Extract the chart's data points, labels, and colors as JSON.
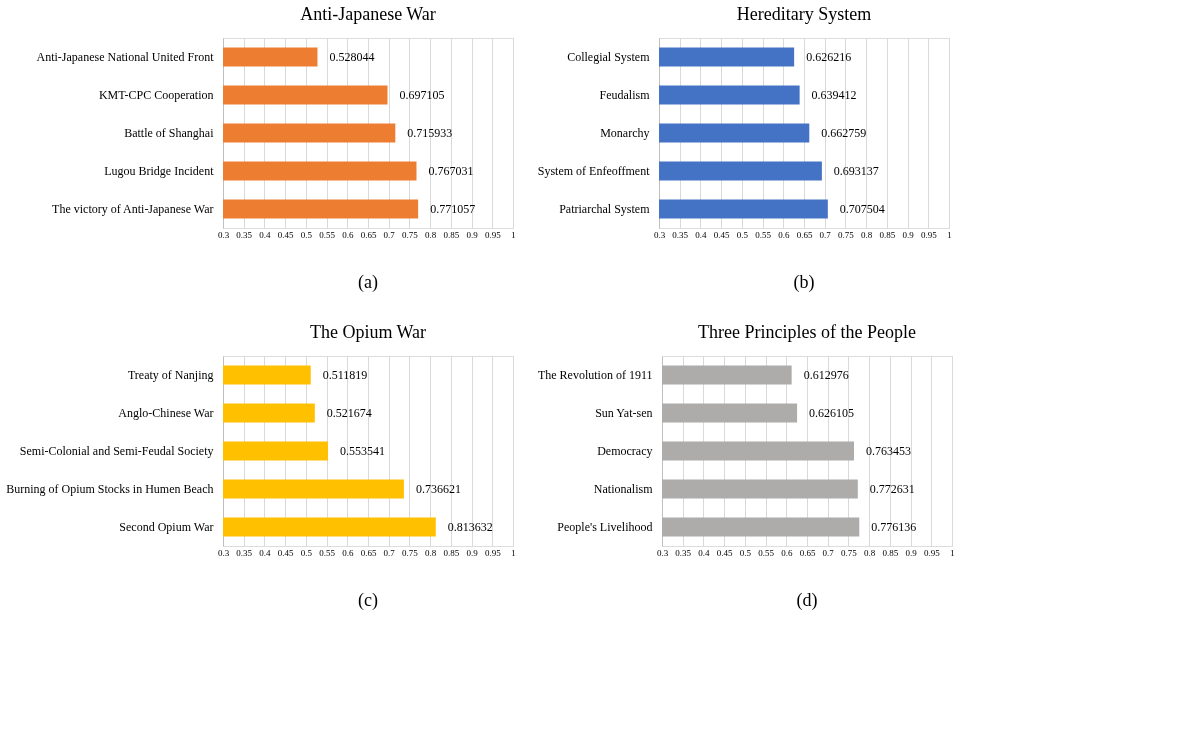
{
  "chart_data": [
    {
      "type": "bar",
      "orientation": "horizontal",
      "title": "Anti-Japanese War",
      "categories": [
        "Anti-Japanese National United Front",
        "KMT-CPC Cooperation",
        "Battle of Shanghai",
        "Lugou Bridge Incident",
        "The victory of Anti-Japanese War"
      ],
      "values": [
        0.528044,
        0.697105,
        0.715933,
        0.767031,
        0.771057
      ],
      "color": "#ed7d31",
      "xlim": [
        0.3,
        1
      ],
      "xticks": [
        0.3,
        0.35,
        0.4,
        0.45,
        0.5,
        0.55,
        0.6,
        0.65,
        0.7,
        0.75,
        0.8,
        0.85,
        0.9,
        0.95,
        1
      ],
      "grid": "x",
      "data_labels": true,
      "annotations": [
        "(a)"
      ]
    },
    {
      "type": "bar",
      "orientation": "horizontal",
      "title": "Hereditary System",
      "categories": [
        "Collegial System",
        "Feudalism",
        "Monarchy",
        "System of Enfeoffment",
        "Patriarchal System"
      ],
      "values": [
        0.626216,
        0.639412,
        0.662759,
        0.693137,
        0.707504
      ],
      "color": "#4472c4",
      "xlim": [
        0.3,
        1
      ],
      "xticks": [
        0.3,
        0.35,
        0.4,
        0.45,
        0.5,
        0.55,
        0.6,
        0.65,
        0.7,
        0.75,
        0.8,
        0.85,
        0.9,
        0.95,
        1
      ],
      "grid": "x",
      "data_labels": true,
      "annotations": [
        "(b)"
      ]
    },
    {
      "type": "bar",
      "orientation": "horizontal",
      "title": "The Opium War",
      "categories": [
        "Treaty of Nanjing",
        "Anglo-Chinese War",
        "Semi-Colonial and Semi-Feudal Society",
        "Burning of Opium Stocks in Humen Beach",
        "Second Opium War"
      ],
      "values": [
        0.511819,
        0.521674,
        0.553541,
        0.736621,
        0.813632
      ],
      "color": "#ffc000",
      "xlim": [
        0.3,
        1
      ],
      "xticks": [
        0.3,
        0.35,
        0.4,
        0.45,
        0.5,
        0.55,
        0.6,
        0.65,
        0.7,
        0.75,
        0.8,
        0.85,
        0.9,
        0.95,
        1
      ],
      "grid": "x",
      "data_labels": true,
      "annotations": [
        "(c)"
      ]
    },
    {
      "type": "bar",
      "orientation": "horizontal",
      "title": "Three Principles of the People",
      "categories": [
        "The Revolution of 1911",
        "Sun Yat-sen",
        "Democracy",
        "Nationalism",
        "People's Livelihood"
      ],
      "values": [
        0.612976,
        0.626105,
        0.763453,
        0.772631,
        0.776136
      ],
      "color": "#aeabab",
      "xlim": [
        0.3,
        1
      ],
      "xticks": [
        0.3,
        0.35,
        0.4,
        0.45,
        0.5,
        0.55,
        0.6,
        0.65,
        0.7,
        0.75,
        0.8,
        0.85,
        0.9,
        0.95,
        1
      ],
      "grid": "x",
      "data_labels": true,
      "annotations": [
        "(d)"
      ]
    }
  ]
}
